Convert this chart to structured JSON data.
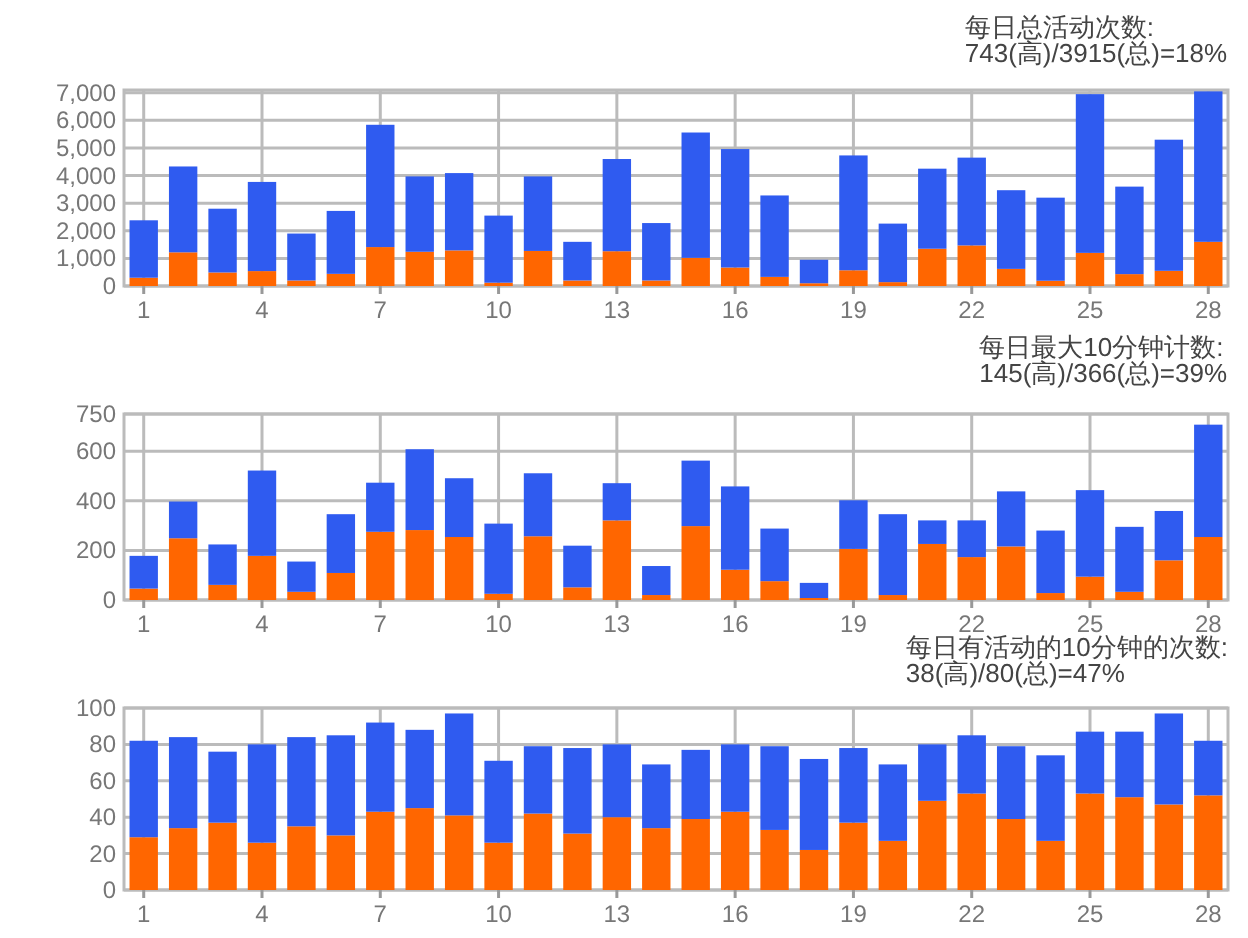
{
  "chart_data": [
    {
      "type": "bar",
      "title": "每日总活动次数:",
      "subtitle": "743(高)/3915(总)=18%",
      "stacked": true,
      "grid": true,
      "categories": [
        "1",
        null,
        null,
        "4",
        null,
        null,
        "7",
        null,
        null,
        "10",
        null,
        null,
        "13",
        null,
        null,
        "16",
        null,
        null,
        "19",
        null,
        null,
        "22",
        null,
        null,
        "25",
        null,
        null,
        "28"
      ],
      "ylim": [
        0,
        7100
      ],
      "yticks": [
        0,
        {
          "value": 1000,
          "label": "1,000"
        },
        {
          "value": 2000,
          "label": "2,000"
        },
        {
          "value": 3000,
          "label": "3,000"
        },
        {
          "value": 4000,
          "label": "4,000"
        },
        {
          "value": 5000,
          "label": "5,000"
        },
        {
          "value": 6000,
          "label": "6,000"
        },
        {
          "value": 7000,
          "label": "7,000"
        }
      ],
      "series": [
        {
          "color": "#ff6600",
          "values": [
            300,
            1220,
            490,
            540,
            200,
            440,
            1410,
            1240,
            1290,
            120,
            1270,
            200,
            1260,
            200,
            1020,
            670,
            330,
            100,
            570,
            140,
            1350,
            1470,
            620,
            190,
            1200,
            430,
            550,
            1600
          ]
        },
        {
          "color": "#2f5bf0",
          "values": [
            2080,
            3110,
            2310,
            3230,
            1700,
            2280,
            4430,
            2730,
            2800,
            2430,
            2700,
            1400,
            3340,
            2080,
            4540,
            4290,
            2950,
            850,
            4160,
            2120,
            2900,
            3180,
            2850,
            3010,
            5750,
            3170,
            4750,
            5450
          ]
        }
      ]
    },
    {
      "type": "bar",
      "title": "每日最大10分钟计数:",
      "subtitle": "145(高)/366(总)=39%",
      "stacked": true,
      "grid": true,
      "categories": [
        "1",
        null,
        null,
        "4",
        null,
        null,
        "7",
        null,
        null,
        "10",
        null,
        null,
        "13",
        null,
        null,
        "16",
        null,
        null,
        "19",
        null,
        null,
        "22",
        null,
        null,
        "25",
        null,
        null,
        "28"
      ],
      "ylim": [
        0,
        750
      ],
      "yticks": [
        0,
        200,
        400,
        600,
        750
      ],
      "series": [
        {
          "color": "#ff6600",
          "values": [
            46,
            249,
            61,
            178,
            33,
            109,
            275,
            282,
            254,
            25,
            257,
            51,
            321,
            20,
            298,
            122,
            76,
            8,
            206,
            20,
            226,
            173,
            216,
            28,
            94,
            33,
            160,
            254
          ]
        },
        {
          "color": "#2f5bf0",
          "values": [
            132,
            148,
            163,
            344,
            122,
            237,
            198,
            326,
            237,
            283,
            254,
            168,
            150,
            117,
            264,
            336,
            212,
            61,
            196,
            326,
            95,
            148,
            222,
            252,
            349,
            262,
            199,
            453
          ]
        }
      ]
    },
    {
      "type": "bar",
      "title": "每日有活动的10分钟的次数:",
      "subtitle": "38(高)/80(总)=47%",
      "stacked": true,
      "grid": true,
      "categories": [
        "1",
        null,
        null,
        "4",
        null,
        null,
        "7",
        null,
        null,
        "10",
        null,
        null,
        "13",
        null,
        null,
        "16",
        null,
        null,
        "19",
        null,
        null,
        "22",
        null,
        null,
        "25",
        null,
        null,
        "28"
      ],
      "ylim": [
        0,
        100
      ],
      "yticks": [
        0,
        20,
        40,
        60,
        80,
        100
      ],
      "series": [
        {
          "color": "#ff6600",
          "values": [
            29,
            34,
            37,
            26,
            35,
            30,
            43,
            45,
            41,
            26,
            42,
            31,
            40,
            34,
            39,
            43,
            33,
            22,
            37,
            27,
            49,
            53,
            39,
            27,
            53,
            51,
            47,
            52
          ]
        },
        {
          "color": "#2f5bf0",
          "values": [
            53,
            50,
            39,
            54,
            49,
            55,
            49,
            43,
            56,
            45,
            37,
            47,
            40,
            35,
            38,
            37,
            46,
            50,
            41,
            42,
            31,
            32,
            40,
            47,
            34,
            36,
            50,
            30
          ]
        }
      ]
    }
  ]
}
